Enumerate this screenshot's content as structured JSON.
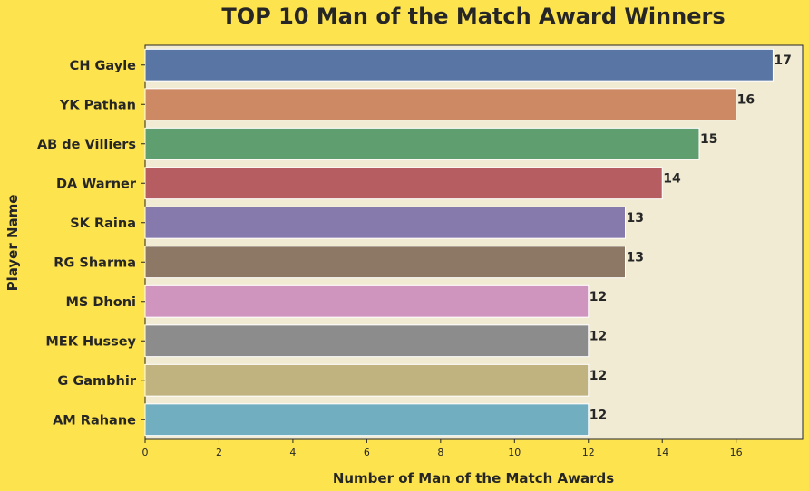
{
  "chart_data": {
    "type": "bar",
    "orientation": "horizontal",
    "title": "TOP 10 Man of the Match Award Winners",
    "xlabel": "Number of Man of the Match Awards",
    "ylabel": "Player Name",
    "categories": [
      "CH Gayle",
      "YK Pathan",
      "AB de Villiers",
      "DA Warner",
      "SK Raina",
      "RG Sharma",
      "MS Dhoni",
      "MEK Hussey",
      "G Gambhir",
      "AM Rahane"
    ],
    "values": [
      17,
      16,
      15,
      14,
      13,
      13,
      12,
      12,
      12,
      12
    ],
    "colors": [
      "#5875a4",
      "#cc8963",
      "#5f9e6e",
      "#b55d60",
      "#857aab",
      "#8d7866",
      "#d095bf",
      "#8c8c8c",
      "#c1b37f",
      "#71aec0"
    ],
    "xticks": [
      0,
      2,
      4,
      6,
      8,
      10,
      12,
      14,
      16
    ],
    "xlim": [
      0,
      17.8
    ],
    "grid": false,
    "plot_background": "#f1ebd3",
    "page_background": "#fde34e"
  }
}
